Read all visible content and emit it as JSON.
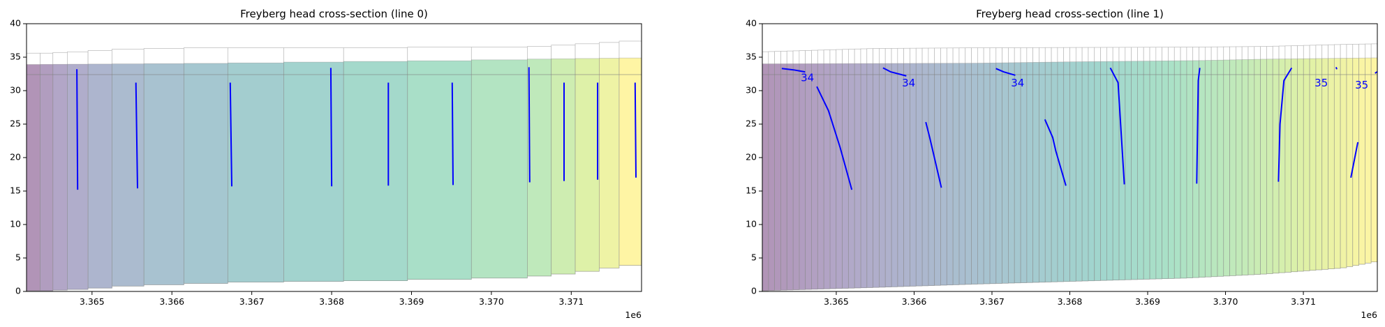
{
  "chart_data": [
    {
      "type": "area",
      "title": "Freyberg head cross-section (line 0)",
      "xlabel": "",
      "ylabel": "",
      "x_offset_label": "1e6",
      "xlim": [
        3.36418,
        3.37188
      ],
      "ylim": [
        0,
        40
      ],
      "x_ticks": [
        3.365,
        3.366,
        3.367,
        3.368,
        3.369,
        3.37,
        3.371
      ],
      "x_tick_labels": [
        "3.365",
        "3.366",
        "3.367",
        "3.368",
        "3.369",
        "3.370",
        "3.371"
      ],
      "y_ticks": [
        0,
        5,
        10,
        15,
        20,
        25,
        30,
        35,
        40
      ],
      "y_tick_labels": [
        "0",
        "5",
        "10",
        "15",
        "20",
        "25",
        "30",
        "35",
        "40"
      ],
      "colormap": "viridis",
      "cells": {
        "edges": [
          3.36418,
          3.36435,
          3.36451,
          3.36469,
          3.36495,
          3.36525,
          3.36565,
          3.36615,
          3.3667,
          3.3674,
          3.36815,
          3.36895,
          3.36975,
          3.37045,
          3.37075,
          3.37105,
          3.37135,
          3.3716,
          3.37188
        ],
        "bottom": [
          0.1,
          0.1,
          0.2,
          0.3,
          0.5,
          0.8,
          1.0,
          1.2,
          1.4,
          1.5,
          1.6,
          1.8,
          2.0,
          2.3,
          2.6,
          3.0,
          3.5,
          3.9
        ],
        "top": [
          35.6,
          35.6,
          35.7,
          35.8,
          36.0,
          36.2,
          36.3,
          36.4,
          36.4,
          36.4,
          36.4,
          36.5,
          36.5,
          36.6,
          36.8,
          37.0,
          37.2,
          37.4
        ]
      },
      "water_table": {
        "x": [
          3.36418,
          3.3668,
          3.368,
          3.3697,
          3.3705,
          3.37188
        ],
        "y": [
          33.9,
          34.1,
          34.3,
          34.5,
          34.7,
          34.9
        ]
      },
      "reference_line": 32.4,
      "contour_color": "#0000ff",
      "contours": [
        {
          "x": [
            3.36481,
            3.36482
          ],
          "y": [
            33.2,
            15.2
          ]
        },
        {
          "x": [
            3.36555,
            3.36557
          ],
          "y": [
            31.2,
            15.4
          ]
        },
        {
          "x": [
            3.36673,
            3.36675
          ],
          "y": [
            31.2,
            15.7
          ]
        },
        {
          "x": [
            3.36799,
            3.368
          ],
          "y": [
            33.4,
            15.7
          ]
        },
        {
          "x": [
            3.36871,
            3.36871
          ],
          "y": [
            31.2,
            15.8
          ]
        },
        {
          "x": [
            3.36951,
            3.36952
          ],
          "y": [
            31.2,
            15.9
          ]
        },
        {
          "x": [
            3.37047,
            3.37048
          ],
          "y": [
            33.5,
            16.3
          ]
        },
        {
          "x": [
            3.37091,
            3.37091
          ],
          "y": [
            31.2,
            16.5
          ]
        },
        {
          "x": [
            3.37133,
            3.37133
          ],
          "y": [
            31.2,
            16.7
          ]
        },
        {
          "x": [
            3.3718,
            3.37181
          ],
          "y": [
            31.2,
            17.0
          ]
        }
      ],
      "contour_labels": []
    },
    {
      "type": "area",
      "title": "Freyberg head cross-section (line 1)",
      "xlabel": "",
      "ylabel": "",
      "x_offset_label": "1e6",
      "xlim": [
        3.36405,
        3.37195
      ],
      "ylim": [
        0,
        40
      ],
      "x_ticks": [
        3.365,
        3.366,
        3.367,
        3.368,
        3.369,
        3.37,
        3.371
      ],
      "x_tick_labels": [
        "3.365",
        "3.366",
        "3.367",
        "3.368",
        "3.369",
        "3.370",
        "3.371"
      ],
      "y_ticks": [
        0,
        5,
        10,
        15,
        20,
        25,
        30,
        35,
        40
      ],
      "y_tick_labels": [
        "0",
        "5",
        "10",
        "15",
        "20",
        "25",
        "30",
        "35",
        "40"
      ],
      "colormap": "viridis",
      "cells": {
        "x_start": 3.36405,
        "x_end": 3.37195,
        "count": 100,
        "bottom_profile": {
          "x": [
            3.36405,
            3.3655,
            3.3668,
            3.3695,
            3.3705,
            3.3715,
            3.37195
          ],
          "y": [
            0.1,
            0.6,
            1.1,
            2.0,
            2.6,
            3.5,
            4.5
          ]
        },
        "top_profile": {
          "x": [
            3.36405,
            3.3655,
            3.3668,
            3.3695,
            3.3705,
            3.3715,
            3.37195
          ],
          "y": [
            35.8,
            36.3,
            36.4,
            36.5,
            36.6,
            36.9,
            37.0
          ]
        }
      },
      "water_table": {
        "x": [
          3.36405,
          3.3668,
          3.368,
          3.3697,
          3.3705,
          3.37195
        ],
        "y": [
          34.0,
          34.1,
          34.3,
          34.5,
          34.7,
          34.9
        ]
      },
      "reference_line": 32.4,
      "contour_color": "#0000ff",
      "contours": [
        {
          "x": [
            3.3643,
            3.36445,
            3.3646
          ],
          "y": [
            33.3,
            33.1,
            32.8
          ]
        },
        {
          "x": [
            3.36475,
            3.3649,
            3.36505,
            3.3652
          ],
          "y": [
            30.6,
            27.0,
            21.5,
            15.2
          ]
        },
        {
          "x": [
            3.3656,
            3.3657,
            3.3659
          ],
          "y": [
            33.4,
            32.8,
            32.2
          ]
        },
        {
          "x": [
            3.36615,
            3.3662,
            3.36635
          ],
          "y": [
            25.3,
            23.0,
            15.5
          ]
        },
        {
          "x": [
            3.36705,
            3.36715,
            3.3673
          ],
          "y": [
            33.3,
            32.8,
            32.3
          ]
        },
        {
          "x": [
            3.36768,
            3.36778,
            3.36782,
            3.36795
          ],
          "y": [
            25.7,
            23.0,
            21.0,
            15.8
          ]
        },
        {
          "x": [
            3.36852,
            3.36862,
            3.3687
          ],
          "y": [
            33.4,
            31.2,
            16.0
          ]
        },
        {
          "x": [
            3.36963,
            3.36965,
            3.36967
          ],
          "y": [
            16.1,
            31.5,
            33.4
          ]
        },
        {
          "x": [
            3.37068,
            3.3707,
            3.37075,
            3.37085
          ],
          "y": [
            16.4,
            25.0,
            31.5,
            33.4
          ]
        },
        {
          "x": [
            3.37142,
            3.37143
          ],
          "y": [
            33.5,
            33.2
          ]
        },
        {
          "x": [
            3.37161,
            3.3717
          ],
          "y": [
            17.0,
            22.3
          ]
        },
        {
          "x": [
            3.37192,
            3.37196
          ],
          "y": [
            32.6,
            32.9
          ]
        }
      ],
      "contour_labels": [
        {
          "text": "34",
          "x": 3.36463,
          "y": 31.9
        },
        {
          "text": "34",
          "x": 3.36593,
          "y": 31.1
        },
        {
          "text": "34",
          "x": 3.36733,
          "y": 31.1
        },
        {
          "text": "35",
          "x": 3.37123,
          "y": 31.1
        },
        {
          "text": "35",
          "x": 3.37175,
          "y": 30.8
        }
      ]
    }
  ]
}
